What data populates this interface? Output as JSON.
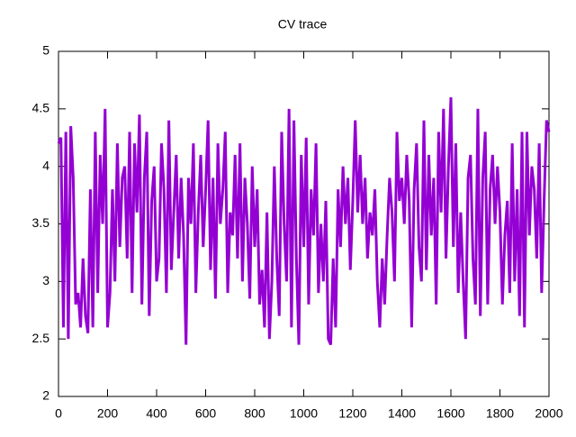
{
  "chart_data": {
    "type": "line",
    "title": "CV trace",
    "color": "#9400d3",
    "x": [
      0,
      10,
      20,
      30,
      40,
      50,
      60,
      70,
      80,
      90,
      100,
      110,
      120,
      130,
      140,
      150,
      160,
      170,
      180,
      190,
      200,
      210,
      220,
      230,
      240,
      250,
      260,
      270,
      280,
      290,
      300,
      310,
      320,
      330,
      340,
      350,
      360,
      370,
      380,
      390,
      400,
      410,
      420,
      430,
      440,
      450,
      460,
      470,
      480,
      490,
      500,
      510,
      520,
      530,
      540,
      550,
      560,
      570,
      580,
      590,
      600,
      610,
      620,
      630,
      640,
      650,
      660,
      670,
      680,
      690,
      700,
      710,
      720,
      730,
      740,
      750,
      760,
      770,
      780,
      790,
      800,
      810,
      820,
      830,
      840,
      850,
      860,
      870,
      880,
      890,
      900,
      910,
      920,
      930,
      940,
      950,
      960,
      970,
      980,
      990,
      1000,
      1010,
      1020,
      1030,
      1040,
      1050,
      1060,
      1070,
      1080,
      1090,
      1100,
      1110,
      1120,
      1130,
      1140,
      1150,
      1160,
      1170,
      1180,
      1190,
      1200,
      1210,
      1220,
      1230,
      1240,
      1250,
      1260,
      1270,
      1280,
      1290,
      1300,
      1310,
      1320,
      1330,
      1340,
      1350,
      1360,
      1370,
      1380,
      1390,
      1400,
      1410,
      1420,
      1430,
      1440,
      1450,
      1460,
      1470,
      1480,
      1490,
      1500,
      1510,
      1520,
      1530,
      1540,
      1550,
      1560,
      1570,
      1580,
      1590,
      1600,
      1610,
      1620,
      1630,
      1640,
      1650,
      1660,
      1670,
      1680,
      1690,
      1700,
      1710,
      1720,
      1730,
      1740,
      1750,
      1760,
      1770,
      1780,
      1790,
      1800,
      1810,
      1820,
      1830,
      1840,
      1850,
      1860,
      1870,
      1880,
      1890,
      1900,
      1910,
      1920,
      1930,
      1940,
      1950,
      1960,
      1970,
      1980,
      1990,
      2000
    ],
    "values": [
      4.2,
      4.25,
      2.6,
      4.3,
      2.5,
      4.35,
      3.9,
      2.8,
      2.9,
      2.6,
      3.2,
      2.7,
      2.55,
      3.8,
      2.6,
      4.3,
      2.9,
      4.1,
      3.5,
      4.5,
      2.6,
      2.9,
      3.8,
      3.0,
      4.2,
      3.3,
      3.9,
      4.0,
      3.2,
      4.3,
      2.9,
      4.2,
      3.6,
      4.45,
      2.8,
      3.9,
      4.3,
      2.7,
      3.7,
      4.0,
      3.0,
      3.2,
      4.2,
      3.8,
      2.9,
      4.4,
      3.1,
      3.6,
      4.1,
      3.2,
      3.9,
      3.4,
      2.45,
      3.9,
      3.5,
      4.2,
      2.9,
      3.6,
      4.1,
      3.3,
      3.8,
      4.4,
      3.1,
      3.9,
      2.85,
      4.2,
      3.5,
      3.8,
      4.3,
      2.9,
      3.6,
      3.4,
      4.1,
      3.2,
      4.2,
      3.0,
      3.9,
      3.5,
      2.85,
      4.0,
      3.3,
      3.8,
      2.8,
      3.1,
      2.6,
      3.6,
      2.5,
      3.0,
      4.0,
      3.2,
      2.7,
      4.3,
      3.5,
      3.0,
      4.5,
      2.6,
      4.4,
      3.2,
      2.45,
      4.1,
      3.3,
      4.25,
      2.8,
      3.8,
      3.4,
      4.2,
      2.9,
      3.5,
      3.0,
      3.7,
      2.5,
      2.45,
      3.2,
      2.6,
      3.8,
      3.3,
      4.0,
      3.5,
      3.9,
      3.1,
      3.7,
      4.4,
      3.6,
      4.1,
      3.5,
      3.9,
      3.2,
      3.6,
      3.4,
      3.8,
      3.0,
      2.6,
      3.2,
      2.8,
      3.4,
      3.9,
      3.6,
      3.0,
      4.3,
      3.7,
      3.9,
      3.5,
      4.1,
      3.7,
      2.6,
      3.8,
      4.2,
      3.3,
      3.0,
      4.4,
      3.1,
      4.1,
      3.4,
      3.9,
      2.8,
      4.3,
      3.6,
      4.5,
      3.2,
      4.0,
      4.6,
      3.3,
      4.2,
      2.9,
      3.6,
      3.0,
      2.5,
      3.9,
      4.1,
      3.2,
      2.8,
      4.5,
      2.7,
      3.9,
      4.3,
      2.8,
      3.8,
      4.1,
      3.5,
      4.0,
      3.6,
      2.8,
      3.4,
      3.7,
      2.9,
      4.2,
      3.0,
      3.8,
      2.7,
      4.3,
      2.6,
      4.3,
      3.4,
      4.0,
      3.8,
      3.2,
      4.2,
      2.9,
      3.7,
      4.4,
      4.3
    ],
    "xlim": [
      0,
      2000
    ],
    "xticks": [
      0,
      200,
      400,
      600,
      800,
      1000,
      1200,
      1400,
      1600,
      1800,
      2000
    ],
    "ylim": [
      2,
      5
    ],
    "yticks": [
      2,
      2.5,
      3,
      3.5,
      4,
      4.5,
      5
    ]
  }
}
